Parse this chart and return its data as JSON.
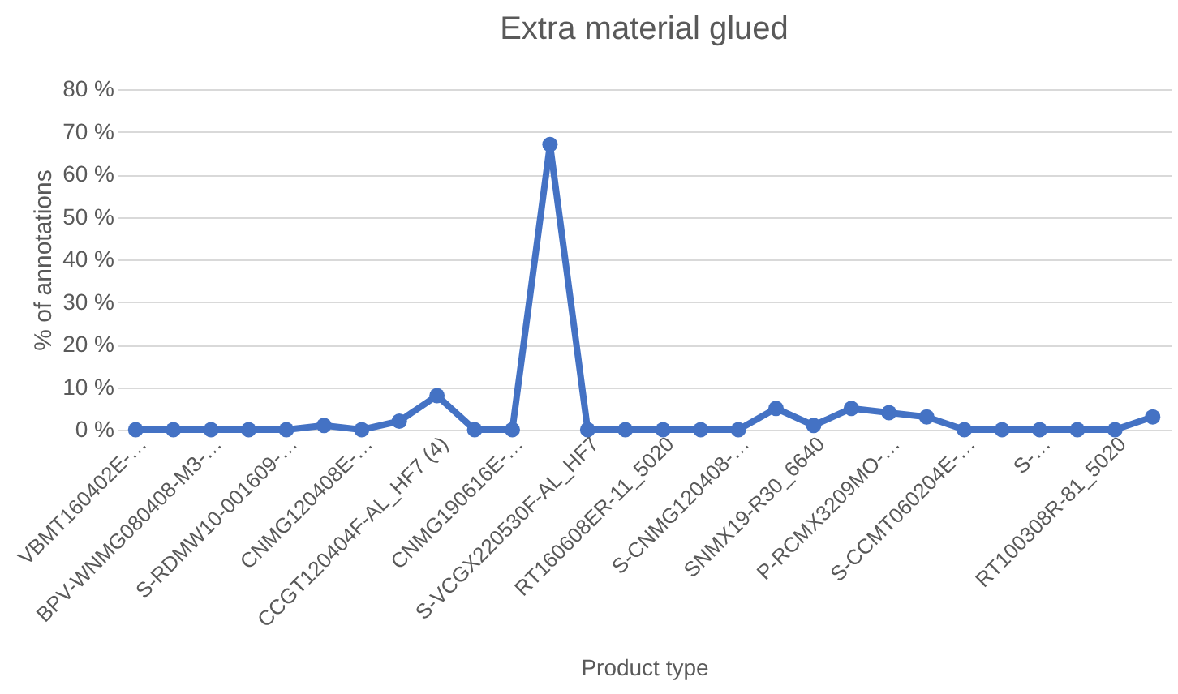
{
  "chart_data": {
    "type": "line",
    "title": "Extra material glued",
    "xlabel": "Product type",
    "ylabel": "% of annotations",
    "categories": [
      "VBMT160402E-…",
      null,
      "BPV-WNMG080408-M3-…",
      null,
      "S-RDMW10-001609-…",
      null,
      "CNMG120408E-…",
      null,
      "CCGT120404F-AL_HF7 (4)",
      null,
      "CNMG190616E-…",
      null,
      "S-VCGX220530F-AL_HF7",
      null,
      "RT160608ER-11_5020",
      null,
      "S-CNMG120408-…",
      null,
      "SNMX19-R30_6640",
      null,
      "P-RCMX3209MO-…",
      null,
      "S-CCMT060204E-…",
      null,
      "S-…",
      null,
      "RT100308R-81_5020",
      null
    ],
    "series": [
      {
        "color": "#4472c4",
        "values": [
          0,
          0,
          0,
          0,
          0,
          1,
          0,
          2,
          8,
          0,
          0,
          67,
          0,
          0,
          0,
          0,
          0,
          5,
          1,
          5,
          4,
          3,
          0,
          0,
          0,
          0,
          0,
          3
        ]
      }
    ],
    "ylim": [
      0,
      80
    ],
    "yticks": [
      {
        "value": 0,
        "label": "0 %"
      },
      {
        "value": 10,
        "label": "10 %"
      },
      {
        "value": 20,
        "label": "20 %"
      },
      {
        "value": 30,
        "label": "30 %"
      },
      {
        "value": 40,
        "label": "40 %"
      },
      {
        "value": 50,
        "label": "50 %"
      },
      {
        "value": 60,
        "label": "60 %"
      },
      {
        "value": 70,
        "label": "70 %"
      },
      {
        "value": 80,
        "label": "80 %"
      }
    ],
    "grid": "y",
    "marker": "circle",
    "line_style": "solid"
  }
}
